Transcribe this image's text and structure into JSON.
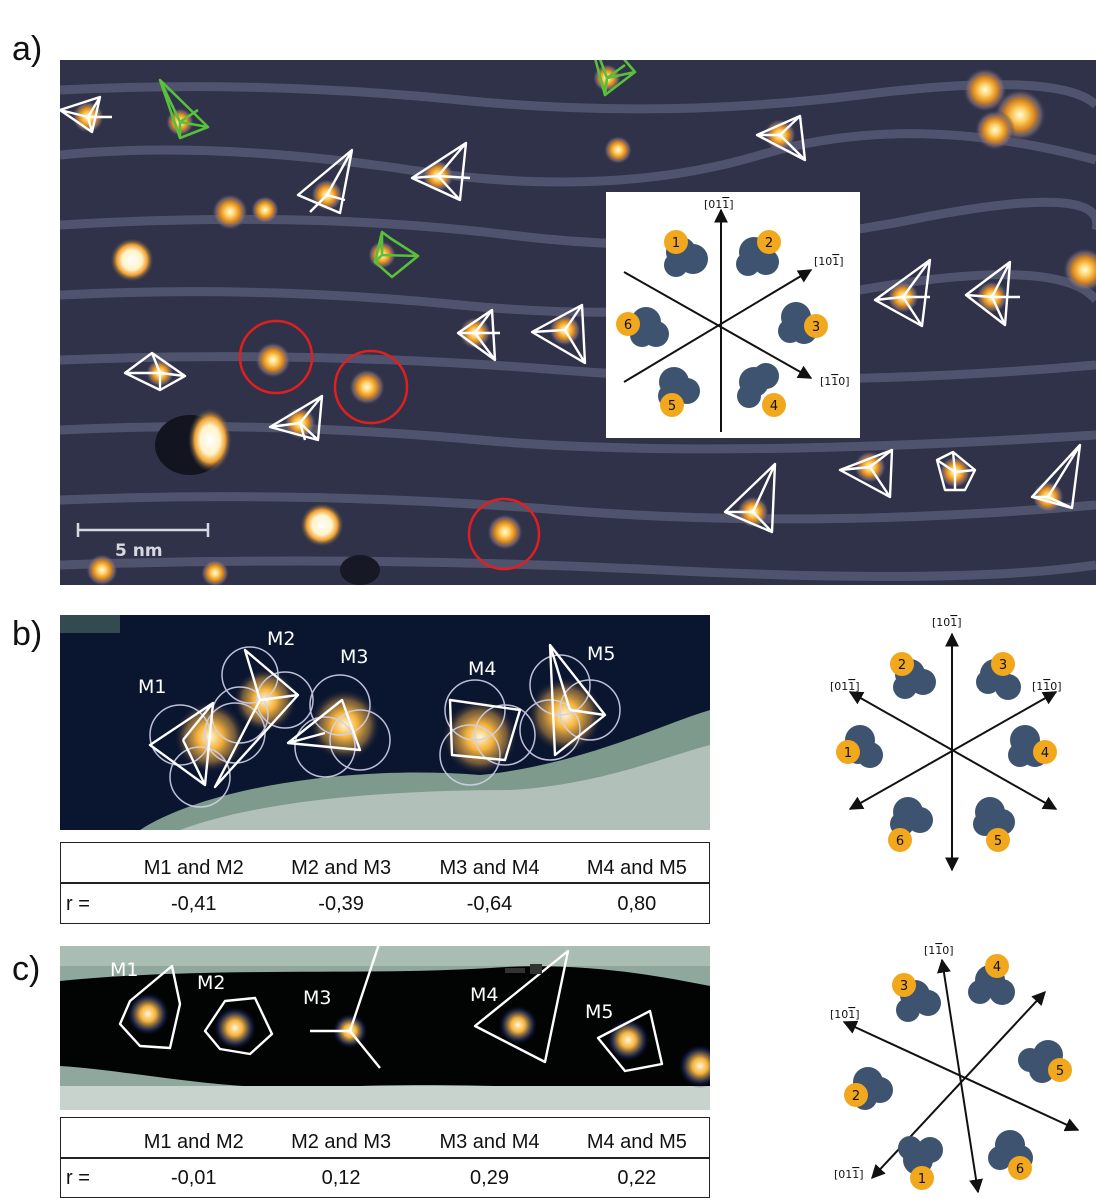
{
  "panels": {
    "a": "a)",
    "b": "b)",
    "c": "c)"
  },
  "panel_a": {
    "scalebar": "5 nm",
    "inset": {
      "axes": [
        "[01̅1̅]",
        "[101̅]",
        "[11̅0]"
      ],
      "axis_labels": [
        "[011]",
        "[101]",
        "[110]"
      ],
      "numbers": [
        "1",
        "2",
        "3",
        "4",
        "5",
        "6"
      ]
    }
  },
  "panel_b": {
    "molecules": [
      "M1",
      "M2",
      "M3",
      "M4",
      "M5"
    ],
    "axis_labels": [
      "[101]",
      "[011]",
      "[110]"
    ],
    "numbers": [
      "1",
      "2",
      "3",
      "4",
      "5",
      "6"
    ],
    "table": {
      "headers": [
        "",
        "M1 and M2",
        "M2 and M3",
        "M3 and M4",
        "M4 and M5"
      ],
      "row_label": "r =",
      "values": [
        "-0,41",
        "-0,39",
        "-0,64",
        "0,80"
      ]
    }
  },
  "panel_c": {
    "molecules": [
      "M1",
      "M2",
      "M3",
      "M4",
      "M5"
    ],
    "axis_labels": [
      "[110]",
      "[101]",
      "[011]"
    ],
    "numbers": [
      "1",
      "2",
      "3",
      "4",
      "5",
      "6"
    ],
    "table": {
      "headers": [
        "",
        "M1 and M2",
        "M2 and M3",
        "M3 and M4",
        "M4 and M5"
      ],
      "row_label": "r =",
      "values": [
        "-0,01",
        "0,12",
        "0,29",
        "0,22"
      ]
    }
  },
  "colors": {
    "orange": "#f2a81d",
    "navy": "#3d5370",
    "stm_bg": "#2e3146",
    "red": "#e02020",
    "green": "#58c03a"
  }
}
